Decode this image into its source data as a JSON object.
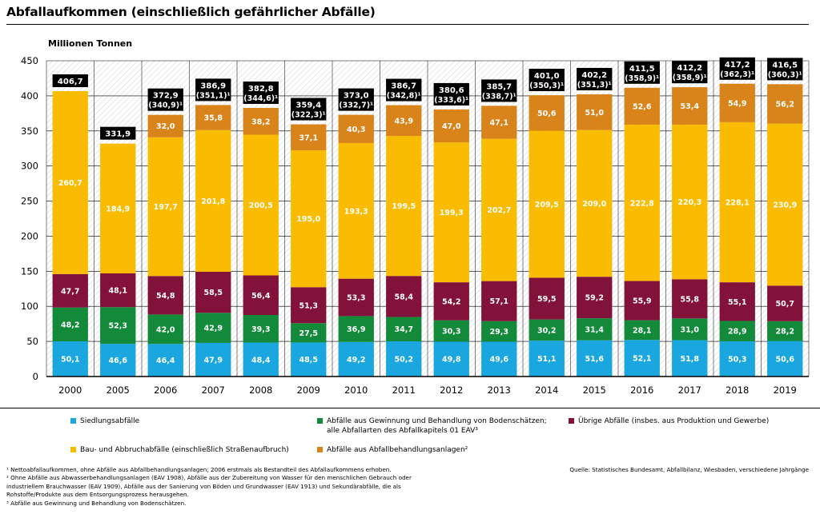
{
  "title": "Abfallaufkommen (einschließlich gefährlicher Abfälle)",
  "chart_data": {
    "type": "bar",
    "stacked": true,
    "ylabel": "Millionen Tonnen",
    "ylim": [
      0,
      450
    ],
    "yticks": [
      0,
      50,
      100,
      150,
      200,
      250,
      300,
      350,
      400,
      450
    ],
    "grid": true,
    "categories": [
      "2000",
      "2005",
      "2006",
      "2007",
      "2008",
      "2009",
      "2010",
      "2011",
      "2012",
      "2013",
      "2014",
      "2015",
      "2016",
      "2017",
      "2018",
      "2019"
    ],
    "series": [
      {
        "name": "Siedlungsabfälle",
        "color": "#1aa7e0",
        "values": [
          50.1,
          46.6,
          46.4,
          47.9,
          48.4,
          48.5,
          49.2,
          50.2,
          49.8,
          49.6,
          51.1,
          51.6,
          52.1,
          51.8,
          50.3,
          50.6
        ],
        "labels": [
          "50,1",
          "46,6",
          "46,4",
          "47,9",
          "48,4",
          "48,5",
          "49,2",
          "50,2",
          "49,8",
          "49,6",
          "51,1",
          "51,6",
          "52,1",
          "51,8",
          "50,3",
          "50,6"
        ]
      },
      {
        "name": "Abfälle aus Gewinnung und Behandlung von Bodenschätzen; alle Abfallarten des Abfallkapitels 01 EAV³",
        "color": "#138a3a",
        "values": [
          48.2,
          52.3,
          42.0,
          42.9,
          39.3,
          27.5,
          36.9,
          34.7,
          30.3,
          29.3,
          30.2,
          31.4,
          28.1,
          31.0,
          28.9,
          28.2
        ],
        "labels": [
          "48,2",
          "52,3",
          "42,0",
          "42,9",
          "39,3",
          "27,5",
          "36,9",
          "34,7",
          "30,3",
          "29,3",
          "30,2",
          "31,4",
          "28,1",
          "31,0",
          "28,9",
          "28,2"
        ]
      },
      {
        "name": "Übrige Abfälle (insbes. aus Produktion und Gewerbe)",
        "color": "#83123a",
        "values": [
          47.7,
          48.1,
          54.8,
          58.5,
          56.4,
          51.3,
          53.3,
          58.4,
          54.2,
          57.1,
          59.5,
          59.2,
          55.9,
          55.8,
          55.1,
          50.7
        ],
        "labels": [
          "47,7",
          "48,1",
          "54,8",
          "58,5",
          "56,4",
          "51,3",
          "53,3",
          "58,4",
          "54,2",
          "57,1",
          "59,5",
          "59,2",
          "55,9",
          "55,8",
          "55,1",
          "50,7"
        ]
      },
      {
        "name": "Bau- und Abbruchabfälle (einschließlich Straßenaufbruch)",
        "color": "#f9bc00",
        "values": [
          260.7,
          184.9,
          197.7,
          201.8,
          200.5,
          195.0,
          193.3,
          199.5,
          199.3,
          202.7,
          209.5,
          209.0,
          222.8,
          220.3,
          228.1,
          230.9
        ],
        "labels": [
          "260,7",
          "184,9",
          "197,7",
          "201,8",
          "200,5",
          "195,0",
          "193,3",
          "199,5",
          "199,3",
          "202,7",
          "209,5",
          "209,0",
          "222,8",
          "220,3",
          "228,1",
          "230,9"
        ]
      },
      {
        "name": "Abfälle aus Abfallbehandlungsanlagen²",
        "color": "#d9841a",
        "values": [
          0,
          0,
          32.0,
          35.8,
          38.2,
          37.1,
          40.3,
          43.9,
          47.0,
          47.1,
          50.6,
          51.0,
          52.6,
          53.4,
          54.9,
          56.2
        ],
        "labels": [
          "",
          "",
          "32,0",
          "35,8",
          "38,2",
          "37,1",
          "40,3",
          "43,9",
          "47,0",
          "47,1",
          "50,6",
          "51,0",
          "52,6",
          "53,4",
          "54,9",
          "56,2"
        ]
      }
    ],
    "totals": [
      406.7,
      331.9,
      372.9,
      386.9,
      382.8,
      359.4,
      373.0,
      386.7,
      380.6,
      385.7,
      401.0,
      402.2,
      411.5,
      412.2,
      417.2,
      416.5
    ],
    "total_labels": [
      "406,7",
      "331,9",
      "372,9",
      "386,9",
      "382,8",
      "359,4",
      "373,0",
      "386,7",
      "380,6",
      "385,7",
      "401,0",
      "402,2",
      "411,5",
      "412,2",
      "417,2",
      "416,5"
    ],
    "net_labels": [
      "",
      "",
      "(340,9)¹",
      "(351,1)¹",
      "(344,6)¹",
      "(322,3)¹",
      "(332,7)¹",
      "(342,8)¹",
      "(333,6)¹",
      "(338,7)¹",
      "(350,3)¹",
      "(351,3)¹",
      "(358,9)¹",
      "(358,9)¹",
      "(362,3)¹",
      "(360,3)¹"
    ]
  },
  "legend_items": [
    {
      "label": "Siedlungsabfälle",
      "color": "#1aa7e0"
    },
    {
      "label": "Abfälle aus Gewinnung und Behandlung von Bodenschätzen;",
      "label2": "alle Abfallarten des Abfallkapitels 01 EAV³",
      "color": "#138a3a"
    },
    {
      "label": "Übrige Abfälle (insbes. aus Produktion und Gewerbe)",
      "color": "#83123a"
    },
    {
      "label": "Bau- und Abbruchabfälle (einschließlich Straßenaufbruch)",
      "color": "#f9bc00"
    },
    {
      "label": "Abfälle aus Abfallbehandlungsanlagen²",
      "color": "#d9841a"
    }
  ],
  "footnotes": [
    "¹ Nettoabfallaufkommen, ohne Abfälle aus Abfallbehandlungsanlagen; 2006 erstmals als Bestandteil des Abfallaufkommens erhoben.",
    "² Ohne Abfälle aus Abwasserbehandlungsanlagen (EAV 1908), Abfälle aus der Zubereitung von Wasser für den menschlichen Gebrauch oder",
    "industriellem Brauchwasser (EAV 1909), Abfälle aus der Sanierung von Böden und Grundwasser (EAV 1913) und Sekundärabfälle, die als",
    "Rohstoffe/Produkte aus dem Entsorgungsprozess herausgehen.",
    "³ Abfälle aus Gewinnung und Behandlung von Bodenschätzen."
  ],
  "source": "Quelle: Statistisches Bundesamt, Abfallbilanz, Wiesbaden, verschiedene Jahrgänge"
}
